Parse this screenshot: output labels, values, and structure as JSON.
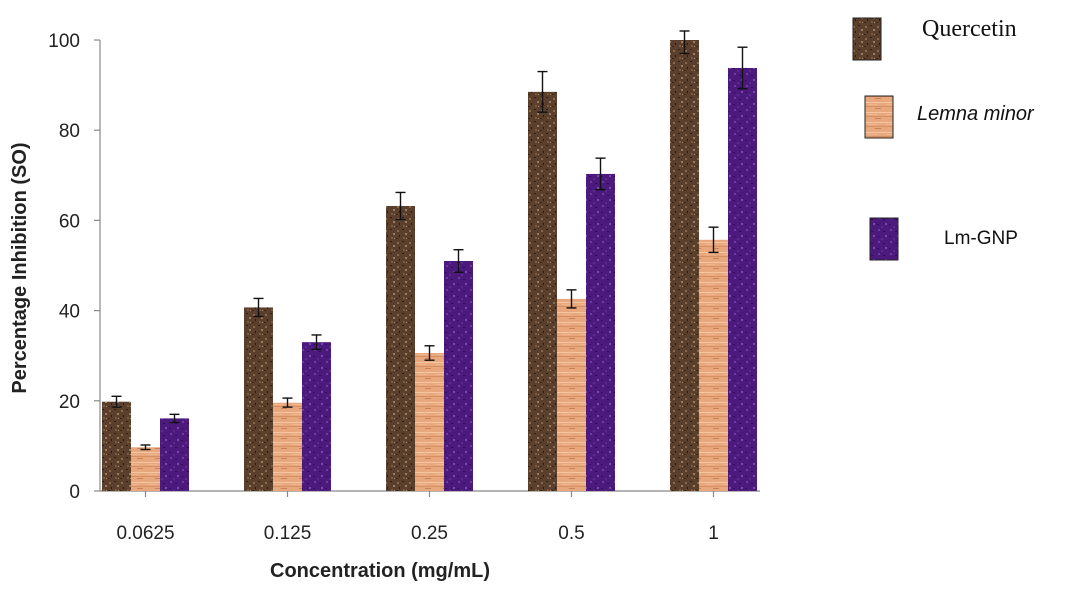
{
  "chart_data": {
    "type": "bar",
    "xlabel": "Concentration (mg/mL)",
    "ylabel": "Percentage Inhibition (SO)",
    "ylim": [
      0,
      100
    ],
    "yticks": [
      0,
      20,
      40,
      60,
      80,
      100
    ],
    "grid": false,
    "legend_position": "right",
    "categories": [
      "0.0625",
      "0.125",
      "0.25",
      "0.5",
      "1"
    ],
    "series": [
      {
        "name": "Quercetin",
        "color": "#5a3f2c",
        "pattern": "speckled-brown",
        "values": [
          19.8,
          40.7,
          63.2,
          88.5,
          100
        ],
        "errors": [
          1.2,
          2.0,
          3.0,
          4.5,
          3.0
        ]
      },
      {
        "name": "Lemna minor",
        "color": "#e8a77c",
        "pattern": "wood-grain-tan",
        "values": [
          9.7,
          19.6,
          30.6,
          42.6,
          55.7
        ],
        "errors": [
          0.5,
          1.0,
          1.6,
          2.0,
          2.8
        ]
      },
      {
        "name": "Lm-GNP",
        "color": "#4b1a7c",
        "pattern": "speckled-purple",
        "values": [
          16.1,
          33.0,
          51.0,
          70.3,
          93.8
        ],
        "errors": [
          0.9,
          1.6,
          2.5,
          3.5,
          4.6
        ]
      }
    ]
  }
}
